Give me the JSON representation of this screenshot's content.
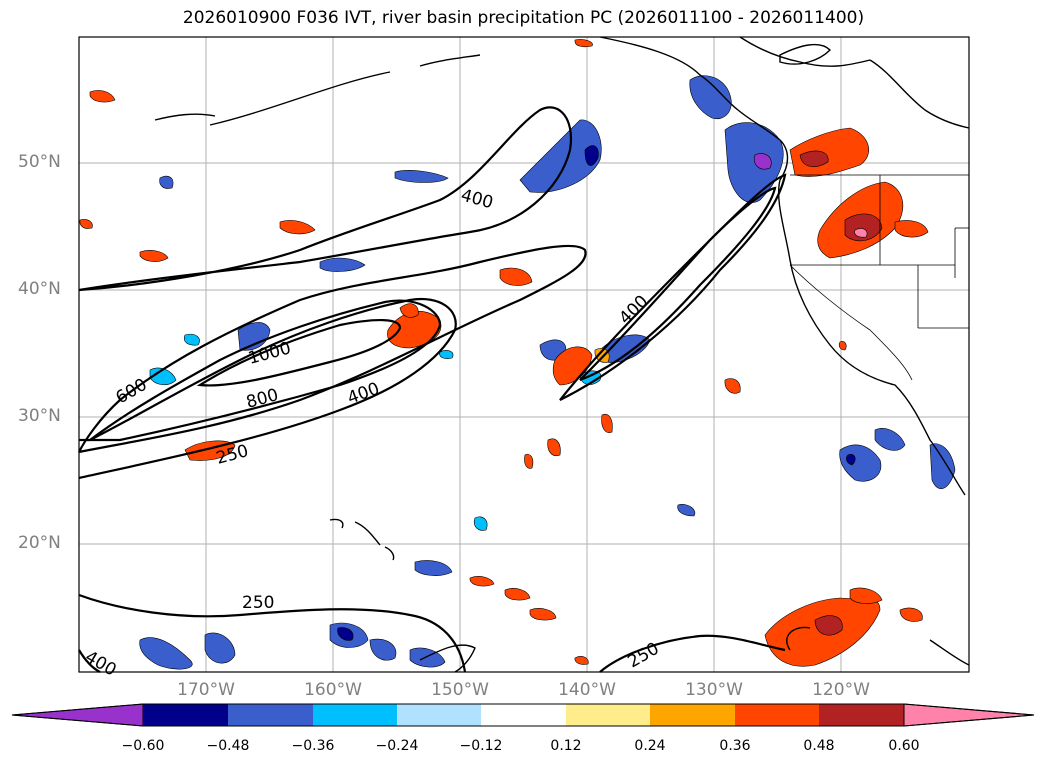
{
  "title": "2026010900 F036 IVT, river basin precipitation PC (2026011100 - 2026011400)",
  "lat_labels": [
    "50°N",
    "40°N",
    "30°N",
    "20°N"
  ],
  "lon_labels": [
    "170°W",
    "160°W",
    "150°W",
    "140°W",
    "130°W",
    "120°W"
  ],
  "contour_labels": [
    "400",
    "400",
    "1000",
    "600",
    "800",
    "400",
    "250",
    "250",
    "400",
    "250"
  ],
  "colorbar": {
    "tick_labels": [
      "−0.60",
      "−0.48",
      "−0.36",
      "−0.24",
      "−0.12",
      "0.12",
      "0.24",
      "0.36",
      "0.48",
      "0.60"
    ],
    "colors": [
      "#9932CC",
      "#00008B",
      "#3A5FCD",
      "#00BFFF",
      "#B0E2FF",
      "#FFFFFF",
      "#FFEC8B",
      "#FFA500",
      "#FF4500",
      "#B22222",
      "#FF82AB"
    ]
  },
  "colors": {
    "negative_strong": "#00008B",
    "negative": "#3A5FCD",
    "negative_light": "#00BFFF",
    "positive": "#FF4500",
    "positive_strong": "#B22222",
    "positive_max": "#FF82AB"
  }
}
